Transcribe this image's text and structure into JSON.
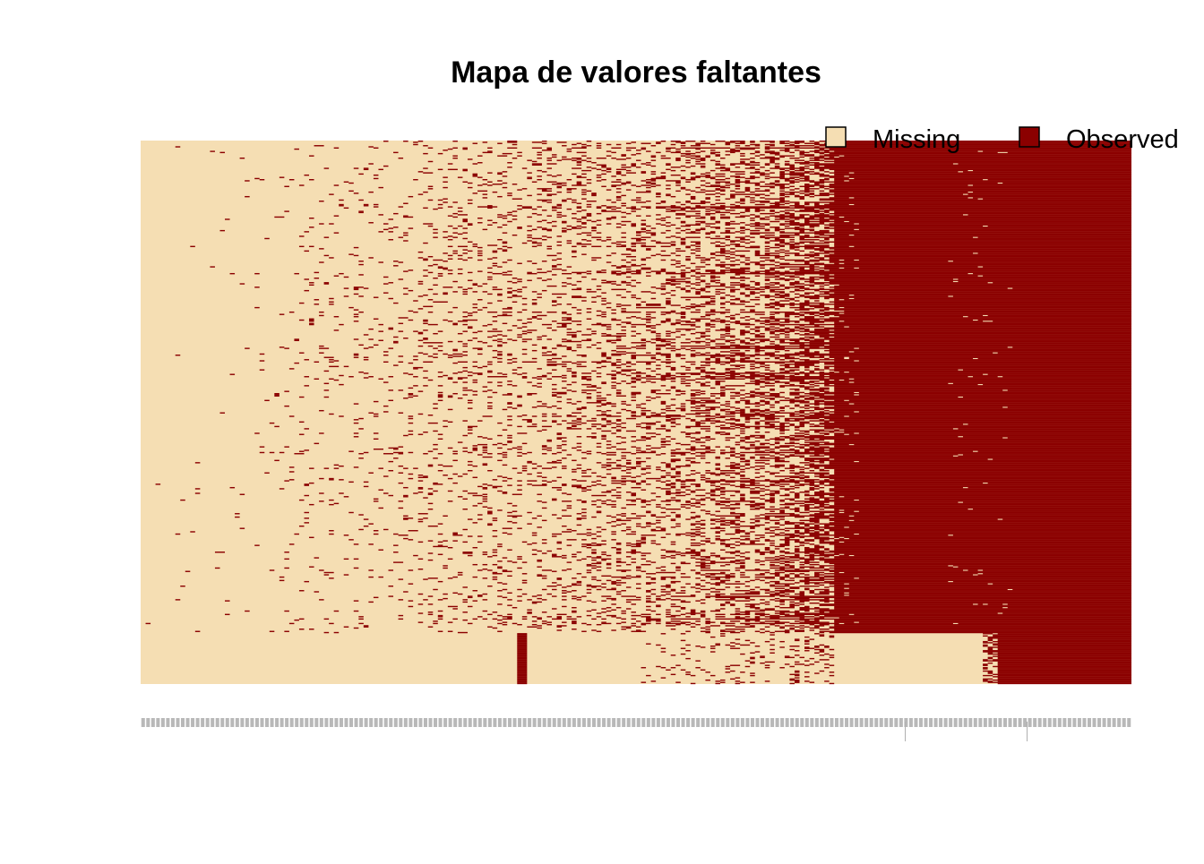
{
  "chart_data": {
    "type": "heatmap",
    "title": "Mapa de valores faltantes",
    "xlabel": "",
    "ylabel": "",
    "legend_position": "top-right",
    "legend": [
      {
        "label": "Missing",
        "color": "#F5DEB3"
      },
      {
        "label": "Observed",
        "color": "#8B0000"
      }
    ],
    "colors": {
      "missing": "#F5DEB3",
      "observed": "#8B0000",
      "background": "#FFFFFF",
      "text": "#000000"
    },
    "matrix": {
      "n_columns": 200,
      "n_rows": 480,
      "column_observed_fraction_ranges": [
        {
          "from_column": 1,
          "to_column": 25,
          "observed_fraction": [
            0.0,
            0.01
          ]
        },
        {
          "from_column": 26,
          "to_column": 50,
          "observed_fraction": [
            0.01,
            0.04
          ]
        },
        {
          "from_column": 51,
          "to_column": 75,
          "observed_fraction": [
            0.04,
            0.1
          ]
        },
        {
          "from_column": 76,
          "to_column": 100,
          "observed_fraction": [
            0.08,
            0.18
          ]
        },
        {
          "from_column": 101,
          "to_column": 125,
          "observed_fraction": [
            0.15,
            0.32
          ]
        },
        {
          "from_column": 126,
          "to_column": 140,
          "observed_fraction": [
            0.3,
            0.55
          ]
        },
        {
          "from_column": 141,
          "to_column": 200,
          "observed_fraction": [
            1.0,
            1.0
          ]
        }
      ],
      "bottom_row_block": {
        "rows_from": 436,
        "rows_to": 480
      },
      "notes": "Missingness pattern: columns mostly missing on the left, fully observed on the right; the bottom row block is mostly missing except a few columns."
    }
  }
}
